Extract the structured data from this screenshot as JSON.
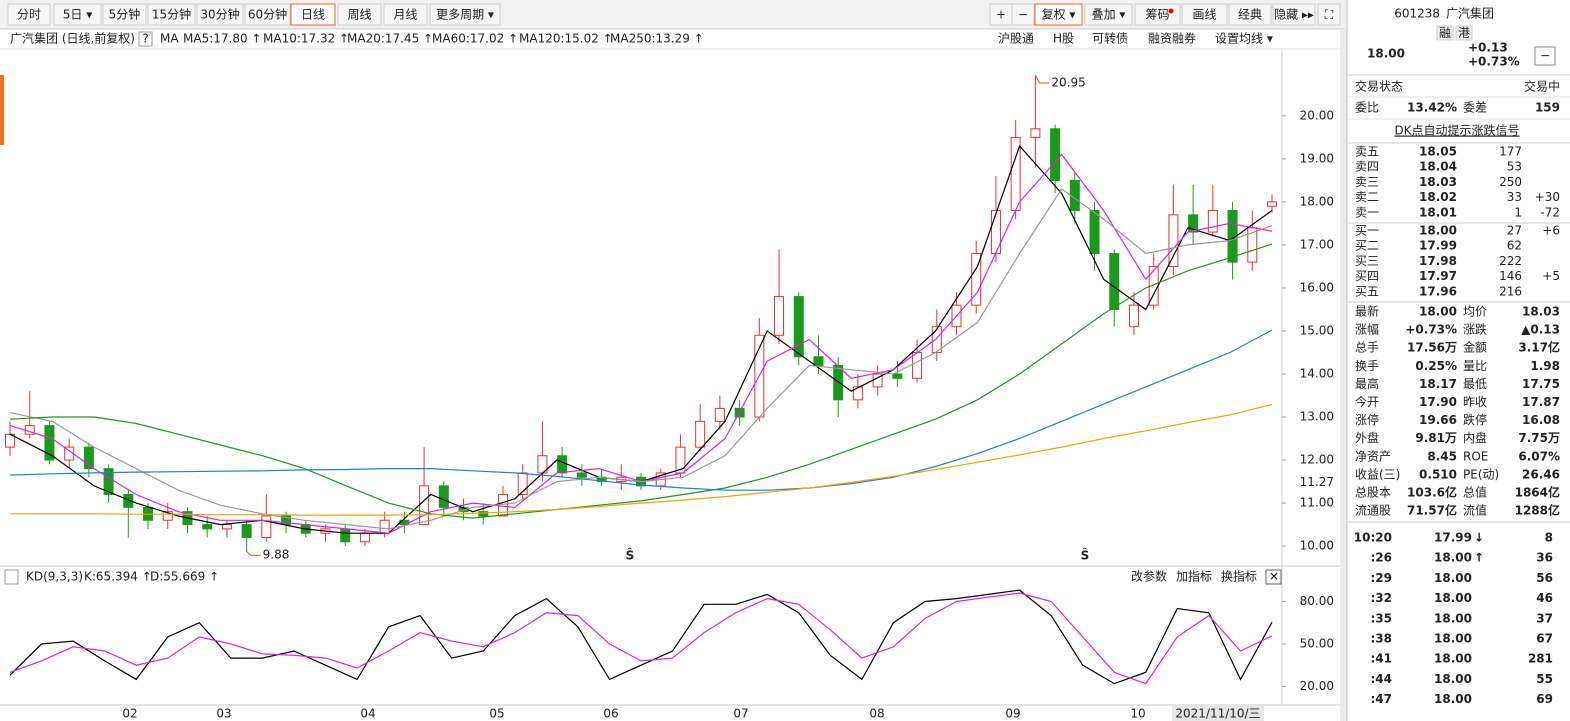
{
  "toolbar": {
    "periods": [
      "分时",
      "5日 ▾",
      "5分钟",
      "15分钟",
      "30分钟",
      "60分钟",
      "日线",
      "周线",
      "月线",
      "更多周期 ▾"
    ],
    "active_period": 6,
    "tools": [
      "+",
      "−",
      "复权 ▾",
      "叠加 ▾",
      "筹码",
      "画线",
      "经典",
      "隐藏 ▸▸",
      "⛶"
    ],
    "active_tool": 2
  },
  "chart_data": [
    {
      "type": "candlestick",
      "title": "广汽集团 (日线,前复权)",
      "help": "?",
      "ma_label": "MA",
      "links": [
        "沪股通",
        "H股",
        "可转债",
        "融资融券",
        "设置均线 ▾"
      ],
      "ohlc": [
        [
          12.3,
          12.9,
          12.1,
          12.6
        ],
        [
          12.6,
          13.6,
          12.5,
          12.8
        ],
        [
          12.8,
          12.9,
          11.9,
          12.0
        ],
        [
          12.0,
          12.5,
          11.8,
          12.3
        ],
        [
          12.3,
          12.4,
          11.6,
          11.8
        ],
        [
          11.8,
          11.9,
          11.0,
          11.2
        ],
        [
          11.2,
          11.3,
          10.2,
          10.9
        ],
        [
          10.9,
          11.0,
          10.4,
          10.6
        ],
        [
          10.6,
          11.0,
          10.4,
          10.8
        ],
        [
          10.8,
          10.9,
          10.3,
          10.5
        ],
        [
          10.5,
          10.7,
          10.2,
          10.4
        ],
        [
          10.4,
          10.6,
          10.2,
          10.5
        ],
        [
          10.5,
          10.6,
          9.88,
          10.2
        ],
        [
          10.2,
          11.2,
          10.1,
          10.7
        ],
        [
          10.7,
          10.8,
          10.3,
          10.5
        ],
        [
          10.5,
          10.6,
          10.2,
          10.3
        ],
        [
          10.3,
          10.5,
          10.1,
          10.4
        ],
        [
          10.4,
          10.5,
          10.0,
          10.1
        ],
        [
          10.1,
          10.4,
          10.0,
          10.3
        ],
        [
          10.3,
          10.8,
          10.2,
          10.6
        ],
        [
          10.6,
          10.8,
          10.3,
          10.5
        ],
        [
          10.5,
          12.3,
          10.5,
          11.4
        ],
        [
          11.4,
          11.5,
          10.7,
          10.9
        ],
        [
          10.9,
          11.1,
          10.6,
          10.8
        ],
        [
          10.8,
          11.0,
          10.5,
          10.7
        ],
        [
          10.7,
          11.4,
          10.7,
          11.2
        ],
        [
          11.2,
          11.9,
          11.1,
          11.7
        ],
        [
          11.7,
          12.9,
          11.5,
          12.1
        ],
        [
          12.1,
          12.3,
          11.6,
          11.7
        ],
        [
          11.7,
          11.9,
          11.4,
          11.6
        ],
        [
          11.6,
          11.8,
          11.4,
          11.5
        ],
        [
          11.5,
          11.9,
          11.3,
          11.6
        ],
        [
          11.6,
          11.7,
          11.3,
          11.4
        ],
        [
          11.4,
          11.8,
          11.3,
          11.7
        ],
        [
          11.7,
          12.6,
          11.6,
          12.3
        ],
        [
          12.3,
          13.3,
          12.2,
          12.9
        ],
        [
          12.9,
          13.5,
          12.7,
          13.2
        ],
        [
          13.2,
          13.4,
          12.8,
          13.0
        ],
        [
          13.0,
          15.3,
          12.9,
          14.9
        ],
        [
          14.9,
          16.9,
          14.7,
          15.8
        ],
        [
          15.8,
          15.9,
          14.2,
          14.4
        ],
        [
          14.4,
          14.9,
          14.0,
          14.2
        ],
        [
          14.2,
          14.4,
          13.0,
          13.4
        ],
        [
          13.4,
          14.0,
          13.2,
          13.7
        ],
        [
          13.7,
          14.2,
          13.5,
          14.0
        ],
        [
          14.0,
          14.3,
          13.7,
          13.9
        ],
        [
          13.9,
          14.8,
          13.8,
          14.5
        ],
        [
          14.5,
          15.5,
          14.3,
          15.1
        ],
        [
          15.1,
          15.9,
          14.9,
          15.6
        ],
        [
          15.6,
          17.1,
          15.4,
          16.8
        ],
        [
          16.8,
          18.6,
          16.6,
          17.8
        ],
        [
          17.8,
          19.9,
          17.6,
          19.5
        ],
        [
          19.5,
          20.95,
          18.8,
          19.7
        ],
        [
          19.7,
          19.8,
          18.2,
          18.5
        ],
        [
          18.5,
          18.7,
          17.5,
          17.8
        ],
        [
          17.8,
          18.0,
          16.4,
          16.8
        ],
        [
          16.8,
          16.9,
          15.1,
          15.5
        ],
        [
          15.1,
          15.9,
          14.9,
          15.6
        ],
        [
          15.6,
          16.8,
          15.5,
          16.5
        ],
        [
          16.5,
          18.4,
          16.3,
          17.7
        ],
        [
          17.7,
          18.4,
          17.0,
          17.3
        ],
        [
          17.3,
          18.4,
          17.2,
          17.8
        ],
        [
          17.8,
          18.0,
          16.2,
          16.6
        ],
        [
          16.6,
          17.8,
          16.4,
          17.4
        ],
        [
          17.9,
          18.17,
          17.75,
          18.0
        ]
      ],
      "up_color": "#e8312f",
      "down_color": "#1a9a1a",
      "series": [
        {
          "name": "MA5",
          "label": "MA5:17.80 ↑",
          "color": "#000000",
          "values": [
            12.6,
            12.1,
            11.4,
            11.0,
            10.7,
            10.5,
            10.6,
            10.4,
            10.3,
            10.3,
            11.2,
            10.8,
            11.1,
            12.0,
            11.6,
            11.5,
            11.8,
            12.9,
            15.0,
            14.3,
            13.6,
            14.1,
            15.0,
            16.5,
            19.3,
            18.2,
            16.2,
            15.5,
            17.4,
            17.1,
            17.8
          ]
        },
        {
          "name": "MA10",
          "label": "MA10:17.32 ↑",
          "color": "#e020e0",
          "values": [
            12.8,
            12.5,
            11.8,
            11.2,
            10.8,
            10.6,
            10.6,
            10.5,
            10.4,
            10.3,
            10.8,
            11.0,
            10.9,
            11.7,
            11.8,
            11.5,
            11.7,
            12.5,
            14.3,
            14.8,
            13.9,
            14.1,
            14.8,
            15.9,
            18.0,
            19.1,
            17.8,
            16.2,
            17.3,
            17.5,
            17.32
          ]
        },
        {
          "name": "MA20",
          "label": "MA20:17.45 ↑",
          "color": "#999999",
          "values": [
            13.1,
            12.9,
            12.3,
            11.8,
            11.3,
            10.95,
            10.75,
            10.6,
            10.5,
            10.4,
            10.6,
            10.9,
            11.0,
            11.5,
            11.6,
            11.5,
            11.6,
            12.1,
            13.2,
            14.2,
            14.1,
            14.0,
            14.5,
            15.2,
            16.8,
            18.3,
            17.6,
            16.8,
            17.0,
            17.1,
            17.45
          ]
        },
        {
          "name": "MA60",
          "label": "MA60:17.02 ↑",
          "color": "#1a9a1a",
          "values": [
            12.95,
            13.0,
            13.0,
            12.85,
            12.6,
            12.35,
            12.1,
            11.8,
            11.4,
            11.0,
            10.75,
            10.65,
            10.75,
            10.85,
            10.95,
            11.05,
            11.2,
            11.35,
            11.6,
            11.9,
            12.25,
            12.6,
            12.95,
            13.4,
            14.0,
            14.7,
            15.4,
            16.0,
            16.4,
            16.7,
            17.02
          ]
        },
        {
          "name": "MA120",
          "label": "MA120:15.02 ↑",
          "color": "#1e7fd6",
          "values": [
            11.65,
            11.68,
            11.7,
            11.72,
            11.73,
            11.74,
            11.75,
            11.77,
            11.78,
            11.8,
            11.8,
            11.75,
            11.7,
            11.62,
            11.52,
            11.42,
            11.35,
            11.3,
            11.3,
            11.35,
            11.45,
            11.6,
            11.85,
            12.15,
            12.5,
            12.9,
            13.3,
            13.7,
            14.1,
            14.5,
            15.02
          ]
        },
        {
          "name": "MA250",
          "label": "MA250:13.29 ↑",
          "color": "#f5a300",
          "values": [
            10.75,
            10.75,
            10.75,
            10.74,
            10.74,
            10.73,
            10.73,
            10.72,
            10.72,
            10.72,
            10.73,
            10.76,
            10.8,
            10.85,
            10.92,
            11.0,
            11.07,
            11.15,
            11.25,
            11.35,
            11.48,
            11.62,
            11.78,
            11.95,
            12.12,
            12.3,
            12.5,
            12.68,
            12.87,
            13.05,
            13.29
          ]
        }
      ],
      "ylim": [
        9.63,
        21.02
      ],
      "yticks": [
        {
          "value": 10,
          "label": "10.00"
        },
        {
          "value": 11,
          "label": "11.00"
        },
        {
          "value": 12,
          "label": "12.00"
        },
        {
          "value": 13,
          "label": "13.00"
        },
        {
          "value": 14,
          "label": "14.00"
        },
        {
          "value": 15,
          "label": "15.00"
        },
        {
          "value": 16,
          "label": "16.00"
        },
        {
          "value": 17,
          "label": "17.00"
        },
        {
          "value": 18,
          "label": "18.00"
        },
        {
          "value": 19,
          "label": "19.00"
        },
        {
          "value": 20,
          "label": "20.00"
        }
      ],
      "cursor_price": {
        "value": 11.27,
        "label": "11.27"
      },
      "annotations": [
        {
          "value": 20.95,
          "label": "20.95"
        },
        {
          "value": 9.88,
          "label": "9.88"
        }
      ],
      "signals": [
        "Ŝ",
        "Ŝ"
      ],
      "months": [
        "02",
        "03",
        "04",
        "05",
        "06",
        "07",
        "08",
        "09",
        "10"
      ],
      "date_label": "2021/11/10/三"
    },
    {
      "type": "line",
      "title": "KD(9,3,3)",
      "buttons": [
        "改参数",
        "加指标",
        "换指标",
        "✕"
      ],
      "series": [
        {
          "name": "K",
          "label": "K:65.394 ↑",
          "color": "#000000",
          "values": [
            28,
            50,
            52,
            38,
            25,
            55,
            65,
            40,
            40,
            45,
            35,
            25,
            62,
            70,
            40,
            45,
            70,
            82,
            62,
            25,
            35,
            45,
            78,
            78,
            85,
            72,
            42,
            25,
            65,
            80,
            82,
            85,
            88,
            70,
            35,
            22,
            30,
            75,
            72,
            25,
            65.394
          ]
        },
        {
          "name": "D",
          "label": "D:55.669 ↑",
          "color": "#e020e0",
          "values": [
            30,
            38,
            48,
            45,
            35,
            40,
            55,
            50,
            43,
            42,
            40,
            33,
            45,
            58,
            52,
            48,
            58,
            72,
            70,
            50,
            38,
            40,
            58,
            72,
            82,
            78,
            60,
            40,
            48,
            68,
            80,
            83,
            86,
            80,
            55,
            30,
            22,
            55,
            70,
            45,
            55.669
          ]
        }
      ],
      "ylim": [
        7.6,
        89.5
      ],
      "yticks": [
        {
          "value": 20,
          "label": "20.00"
        },
        {
          "value": 50,
          "label": "50.00"
        },
        {
          "value": 80,
          "label": "80.00"
        }
      ]
    }
  ],
  "quote": {
    "code": "601238",
    "name": "广汽集团",
    "badges": [
      "融",
      "港"
    ],
    "price": "18.00",
    "change": "+0.13",
    "change_pct": "+0.73%",
    "minimize": "−",
    "status_label": "交易状态",
    "status": "交易中",
    "ratio_label": "委比",
    "ratio": "13.42%",
    "diff_label": "委差",
    "diff": "159",
    "signal_link": "DK点自动提示涨跌信号",
    "asks": [
      {
        "label": "卖五",
        "price": "18.05",
        "vol": "177"
      },
      {
        "label": "卖四",
        "price": "18.04",
        "vol": "53"
      },
      {
        "label": "卖三",
        "price": "18.03",
        "vol": "250"
      },
      {
        "label": "卖二",
        "price": "18.02",
        "vol": "33",
        "chg": "+30"
      },
      {
        "label": "卖一",
        "price": "18.01",
        "vol": "1",
        "chg": "-72"
      }
    ],
    "bids": [
      {
        "label": "买一",
        "price": "18.00",
        "vol": "27",
        "chg": "+6"
      },
      {
        "label": "买二",
        "price": "17.99",
        "vol": "62"
      },
      {
        "label": "买三",
        "price": "17.98",
        "vol": "222"
      },
      {
        "label": "买四",
        "price": "17.97",
        "vol": "146",
        "chg": "+5"
      },
      {
        "label": "买五",
        "price": "17.96",
        "vol": "216"
      }
    ],
    "stats": [
      [
        {
          "t": "最新"
        },
        {
          "t": "18.00",
          "c": "red"
        },
        {
          "t": "均价"
        },
        {
          "t": "18.03",
          "c": "red"
        }
      ],
      [
        {
          "t": "涨幅"
        },
        {
          "t": "+0.73%",
          "c": "red"
        },
        {
          "t": "涨跌"
        },
        {
          "t": "▲0.13",
          "c": "red"
        }
      ],
      [
        {
          "t": "总手"
        },
        {
          "t": "17.56万"
        },
        {
          "t": "金额"
        },
        {
          "t": "3.17亿",
          "c": "blue"
        }
      ],
      [
        {
          "t": "换手"
        },
        {
          "t": "0.25%"
        },
        {
          "t": "量比"
        },
        {
          "t": "1.98",
          "c": "red"
        }
      ],
      [
        {
          "t": "最高"
        },
        {
          "t": "18.17",
          "c": "red"
        },
        {
          "t": "最低"
        },
        {
          "t": "17.75",
          "c": "green"
        }
      ],
      [
        {
          "t": "今开"
        },
        {
          "t": "17.90",
          "c": "red"
        },
        {
          "t": "昨收"
        },
        {
          "t": "17.87"
        }
      ],
      [
        {
          "t": "涨停"
        },
        {
          "t": "19.66",
          "c": "red"
        },
        {
          "t": "跌停"
        },
        {
          "t": "16.08",
          "c": "green"
        }
      ],
      [
        {
          "t": "外盘"
        },
        {
          "t": "9.81万",
          "c": "red"
        },
        {
          "t": "内盘"
        },
        {
          "t": "7.75万",
          "c": "green"
        }
      ],
      [
        {
          "t": "净资产"
        },
        {
          "t": "8.45"
        },
        {
          "t": "ROE"
        },
        {
          "t": "6.07%"
        }
      ],
      [
        {
          "t": "收益(三)"
        },
        {
          "t": "0.510"
        },
        {
          "t": "PE(动)"
        },
        {
          "t": "26.46"
        }
      ],
      [
        {
          "t": "总股本"
        },
        {
          "t": "103.6亿"
        },
        {
          "t": "总值"
        },
        {
          "t": "1864亿"
        }
      ],
      [
        {
          "t": "流通股"
        },
        {
          "t": "71.57亿"
        },
        {
          "t": "流值"
        },
        {
          "t": "1288亿"
        }
      ]
    ],
    "trades": [
      {
        "time": "10:20",
        "price": "17.99",
        "dir": "↓",
        "dir_color": "green",
        "vol": "8",
        "vol_color": "green"
      },
      {
        "time": ":26",
        "price": "18.00",
        "dir": "↑",
        "dir_color": "red",
        "vol": "36",
        "vol_color": "red"
      },
      {
        "time": ":29",
        "price": "18.00",
        "vol": "56",
        "vol_color": "green"
      },
      {
        "time": ":32",
        "price": "18.00",
        "vol": "46",
        "vol_color": "green"
      },
      {
        "time": ":35",
        "price": "18.00",
        "vol": "37",
        "vol_color": "green"
      },
      {
        "time": ":38",
        "price": "18.00",
        "vol": "67",
        "vol_color": "green"
      },
      {
        "time": ":41",
        "price": "18.00",
        "vol": "281",
        "vol_color": "red"
      },
      {
        "time": ":44",
        "price": "18.00",
        "vol": "55",
        "vol_color": "green"
      },
      {
        "time": ":47",
        "price": "18.00",
        "vol": "69",
        "vol_color": "green"
      }
    ]
  }
}
